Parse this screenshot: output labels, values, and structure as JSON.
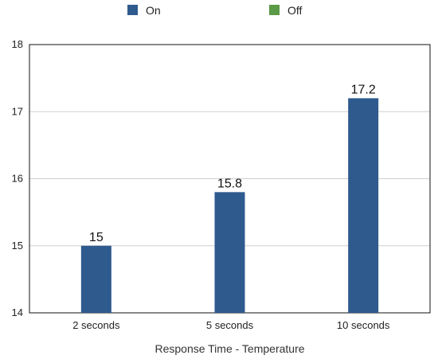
{
  "chart_data": {
    "type": "bar",
    "title": "",
    "xlabel": "Response Time - Temperature",
    "ylabel": "",
    "categories": [
      "2 seconds",
      "5 seconds",
      "10 seconds"
    ],
    "series": [
      {
        "name": "On",
        "color": "#2e5a8e",
        "values": [
          15,
          15.8,
          17.2
        ]
      },
      {
        "name": "Off",
        "color": "#5b9a47",
        "values": [
          null,
          null,
          null
        ]
      }
    ],
    "ylim": [
      14,
      18
    ],
    "yticks": [
      14,
      15,
      16,
      17,
      18
    ],
    "grid": true,
    "legend": "top-center"
  }
}
